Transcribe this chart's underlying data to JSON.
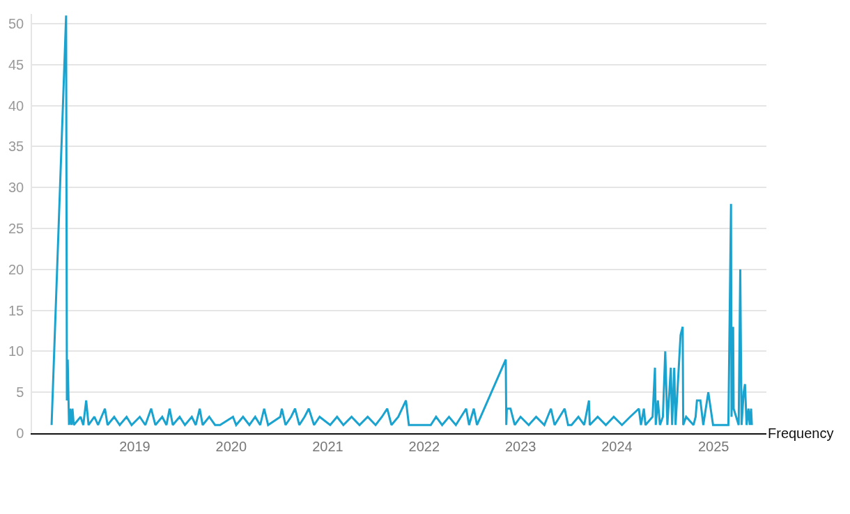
{
  "chart_data": {
    "type": "line",
    "xlim": [
      "2017-12-08",
      "2025-07-20"
    ],
    "ylim": [
      0,
      51.2
    ],
    "xticks": [
      {
        "value": "2019-01-01",
        "label": "2019"
      },
      {
        "value": "2020-01-01",
        "label": "2020"
      },
      {
        "value": "2021-01-01",
        "label": "2021"
      },
      {
        "value": "2022-01-01",
        "label": "2022"
      },
      {
        "value": "2023-01-01",
        "label": "2023"
      },
      {
        "value": "2024-01-01",
        "label": "2024"
      },
      {
        "value": "2025-01-01",
        "label": "2025"
      }
    ],
    "yticks": [
      0,
      5,
      10,
      15,
      20,
      25,
      30,
      35,
      40,
      45,
      50
    ],
    "grid": "y",
    "legend": false,
    "marker": "none",
    "line_style": "solid",
    "x": [
      "2018-02-20",
      "2018-04-16",
      "2018-04-19",
      "2018-04-22",
      "2018-04-27",
      "2018-05-01",
      "2018-05-06",
      "2018-05-10",
      "2018-05-15",
      "2018-06-10",
      "2018-06-20",
      "2018-07-01",
      "2018-07-10",
      "2018-08-01",
      "2018-08-15",
      "2018-09-10",
      "2018-09-20",
      "2018-10-15",
      "2018-11-05",
      "2018-12-01",
      "2018-12-20",
      "2019-01-20",
      "2019-02-10",
      "2019-03-04",
      "2019-03-20",
      "2019-04-15",
      "2019-05-01",
      "2019-05-13",
      "2019-05-25",
      "2019-06-20",
      "2019-07-10",
      "2019-08-05",
      "2019-08-20",
      "2019-09-04",
      "2019-09-15",
      "2019-10-10",
      "2019-11-01",
      "2019-11-20",
      "2020-01-08",
      "2020-01-20",
      "2020-02-15",
      "2020-03-10",
      "2020-04-01",
      "2020-04-20",
      "2020-05-05",
      "2020-05-20",
      "2020-07-05",
      "2020-07-11",
      "2020-07-25",
      "2020-08-15",
      "2020-08-30",
      "2020-09-15",
      "2020-10-05",
      "2020-10-21",
      "2020-11-10",
      "2020-12-01",
      "2021-01-10",
      "2021-02-05",
      "2021-03-01",
      "2021-04-01",
      "2021-05-01",
      "2021-06-01",
      "2021-07-01",
      "2021-07-25",
      "2021-08-14",
      "2021-08-30",
      "2021-09-25",
      "2021-10-24",
      "2021-11-04",
      "2022-01-26",
      "2022-02-15",
      "2022-03-10",
      "2022-04-05",
      "2022-05-01",
      "2022-06-09",
      "2022-06-20",
      "2022-07-08",
      "2022-07-20",
      "2022-08-03",
      "2022-11-06",
      "2022-11-08",
      "2022-11-10",
      "2022-11-24",
      "2022-12-10",
      "2023-01-01",
      "2023-02-01",
      "2023-03-01",
      "2023-04-01",
      "2023-04-26",
      "2023-05-10",
      "2023-06-17",
      "2023-06-30",
      "2023-07-13",
      "2023-08-08",
      "2023-08-30",
      "2023-09-17",
      "2023-09-20",
      "2023-10-20",
      "2023-11-20",
      "2023-12-20",
      "2024-01-20",
      "2024-02-20",
      "2024-03-24",
      "2024-04-01",
      "2024-04-12",
      "2024-04-18",
      "2024-05-15",
      "2024-05-24",
      "2024-05-27",
      "2024-06-04",
      "2024-06-12",
      "2024-06-23",
      "2024-07-02",
      "2024-07-10",
      "2024-07-23",
      "2024-07-28",
      "2024-08-05",
      "2024-08-10",
      "2024-08-29",
      "2024-09-06",
      "2024-09-08",
      "2024-09-19",
      "2024-10-17",
      "2024-10-25",
      "2024-10-30",
      "2024-11-12",
      "2024-11-23",
      "2024-12-12",
      "2024-12-30",
      "2025-02-26",
      "2025-03-08",
      "2025-03-10",
      "2025-03-16",
      "2025-03-18",
      "2025-04-06",
      "2025-04-12",
      "2025-04-17",
      "2025-04-25",
      "2025-04-30",
      "2025-05-06",
      "2025-05-13",
      "2025-05-18",
      "2025-05-23",
      "2025-05-26"
    ],
    "series": [
      {
        "name": "Frequency",
        "color": "#1ba3cf",
        "values": [
          1,
          51,
          4,
          9,
          1,
          3,
          1,
          3,
          1,
          2,
          1,
          4,
          1,
          2,
          1,
          3,
          1,
          2,
          1,
          2,
          1,
          2,
          1,
          3,
          1,
          2,
          1,
          3,
          1,
          2,
          1,
          2,
          1,
          3,
          1,
          2,
          1,
          1,
          2,
          1,
          2,
          1,
          2,
          1,
          3,
          1,
          2,
          3,
          1,
          2,
          3,
          1,
          2,
          3,
          1,
          2,
          1,
          2,
          1,
          2,
          1,
          2,
          1,
          2,
          3,
          1,
          2,
          4,
          1,
          1,
          2,
          1,
          2,
          1,
          3,
          1,
          3,
          1,
          2,
          9,
          1,
          3,
          3,
          1,
          2,
          1,
          2,
          1,
          3,
          1,
          3,
          1,
          1,
          2,
          1,
          4,
          1,
          2,
          1,
          2,
          1,
          2,
          3,
          1,
          3,
          1,
          2,
          8,
          1,
          4,
          1,
          2,
          10,
          1,
          8,
          1,
          8,
          1,
          12,
          13,
          1,
          2,
          1,
          2,
          4,
          4,
          1,
          5,
          1,
          1,
          28,
          2,
          13,
          3,
          1,
          20,
          1,
          5,
          6,
          1,
          3,
          1,
          3,
          1
        ]
      }
    ]
  }
}
